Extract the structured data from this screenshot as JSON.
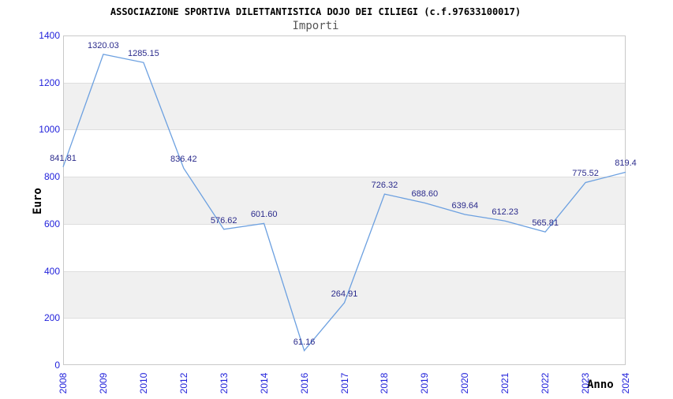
{
  "header": {
    "title": "ASSOCIAZIONE SPORTIVA DILETTANTISTICA DOJO DEI CILIEGI (c.f.97633100017)",
    "subtitle": "Importi"
  },
  "chart_data": {
    "type": "line",
    "title": "ASSOCIAZIONE SPORTIVA DILETTANTISTICA DOJO DEI CILIEGI (c.f.97633100017)",
    "subtitle": "Importi",
    "xlabel": "Anno",
    "ylabel": "Euro",
    "categories": [
      "2008",
      "2009",
      "2010",
      "2012",
      "2013",
      "2014",
      "2016",
      "2017",
      "2018",
      "2019",
      "2020",
      "2021",
      "2022",
      "2023",
      "2024"
    ],
    "values": [
      841.81,
      1320.03,
      1285.15,
      836.42,
      576.62,
      601.6,
      61.16,
      264.91,
      726.32,
      688.6,
      639.64,
      612.23,
      565.81,
      775.52,
      819.4
    ],
    "point_labels": [
      "841.81",
      "1320.03",
      "1285.15",
      "836.42",
      "576.62",
      "601.60",
      "61.16",
      "264.91",
      "726.32",
      "688.60",
      "639.64",
      "612.23",
      "565.81",
      "775.52",
      "819.4"
    ],
    "ylim": [
      0,
      1400
    ],
    "yticks": [
      0,
      200,
      400,
      600,
      800,
      1000,
      1200,
      1400
    ],
    "grid": true,
    "legend": "none",
    "alternating_bands": true,
    "colors": {
      "line": "#6CA0E0",
      "tick_label": "#2222DB",
      "data_label": "#2B2B8C",
      "band": "#F0F0F0",
      "gridline": "#DEDEDE",
      "border": "#C9C9C9",
      "title": "#000000",
      "subtitle": "#555555",
      "axis_label": "#000000"
    }
  }
}
